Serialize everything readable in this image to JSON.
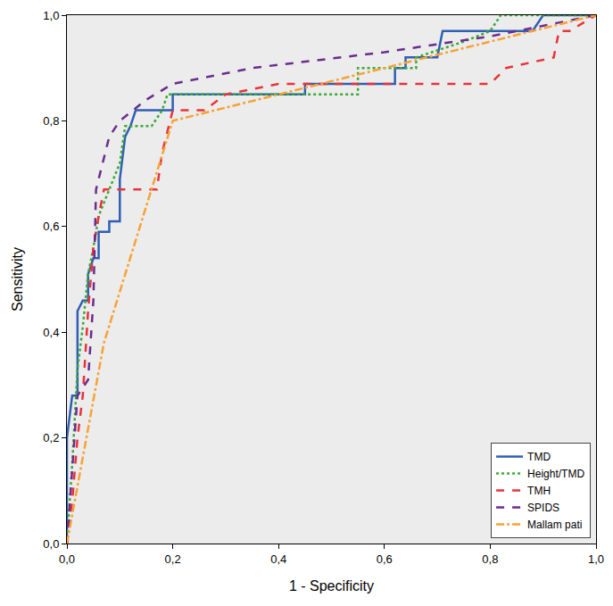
{
  "chart_data": {
    "type": "line",
    "x_label": "1 - Specificity",
    "y_label": "Sensitivity",
    "xlim": [
      0,
      1
    ],
    "ylim": [
      0,
      1
    ],
    "xticks": [
      {
        "value": 0,
        "label": "0,0"
      },
      {
        "value": 0.2,
        "label": "0,2"
      },
      {
        "value": 0.4,
        "label": "0,4"
      },
      {
        "value": 0.6,
        "label": "0,6"
      },
      {
        "value": 0.8,
        "label": "0,8"
      },
      {
        "value": 1,
        "label": "1,0"
      }
    ],
    "yticks": [
      {
        "value": 0,
        "label": "0,0"
      },
      {
        "value": 0.2,
        "label": "0,2"
      },
      {
        "value": 0.4,
        "label": "0,4"
      },
      {
        "value": 0.6,
        "label": "0,6"
      },
      {
        "value": 0.8,
        "label": "0,8"
      },
      {
        "value": 1,
        "label": "1,0"
      }
    ],
    "grid": false,
    "legend": "bottom right",
    "series": [
      {
        "name": "TMD",
        "color": "#2f5fb3",
        "line_style": "solid",
        "x": [
          0,
          0,
          0.01,
          0.02,
          0.02,
          0.03,
          0.04,
          0.04,
          0.05,
          0.06,
          0.06,
          0.08,
          0.08,
          0.1,
          0.1,
          0.11,
          0.12,
          0.13,
          0.2,
          0.2,
          0.45,
          0.45,
          0.62,
          0.62,
          0.64,
          0.64,
          0.7,
          0.71,
          0.88,
          0.9,
          1
        ],
        "values": [
          0,
          0.2,
          0.28,
          0.28,
          0.44,
          0.46,
          0.46,
          0.51,
          0.54,
          0.54,
          0.59,
          0.59,
          0.61,
          0.61,
          0.69,
          0.77,
          0.79,
          0.82,
          0.82,
          0.85,
          0.85,
          0.87,
          0.87,
          0.9,
          0.9,
          0.92,
          0.92,
          0.97,
          0.97,
          1,
          1
        ]
      },
      {
        "name": "Height/TMD",
        "color": "#3aaa35",
        "line_style": "dot",
        "x": [
          0,
          0.01,
          0.02,
          0.03,
          0.04,
          0.05,
          0.06,
          0.08,
          0.1,
          0.11,
          0.16,
          0.18,
          0.19,
          0.55,
          0.55,
          0.66,
          0.66,
          0.75,
          0.8,
          0.82,
          1
        ],
        "values": [
          0,
          0.15,
          0.33,
          0.41,
          0.51,
          0.56,
          0.62,
          0.67,
          0.72,
          0.79,
          0.79,
          0.82,
          0.85,
          0.85,
          0.9,
          0.9,
          0.92,
          0.95,
          0.97,
          1,
          1
        ]
      },
      {
        "name": "TMH",
        "color": "#e8343a",
        "line_style": "dash",
        "x": [
          0,
          0.01,
          0.02,
          0.03,
          0.04,
          0.05,
          0.06,
          0.07,
          0.17,
          0.18,
          0.2,
          0.26,
          0.3,
          0.4,
          0.8,
          0.83,
          0.92,
          0.93,
          0.95,
          1
        ],
        "values": [
          0,
          0.08,
          0.2,
          0.28,
          0.44,
          0.56,
          0.62,
          0.67,
          0.67,
          0.74,
          0.82,
          0.82,
          0.85,
          0.87,
          0.87,
          0.9,
          0.92,
          0.97,
          0.97,
          1
        ]
      },
      {
        "name": "SPIDS",
        "color": "#6b2d8f",
        "line_style": "dash",
        "x": [
          0,
          0.02,
          0.04,
          0.05,
          0.055,
          0.08,
          0.1,
          0.15,
          0.2,
          0.35,
          0.6,
          0.8,
          1
        ],
        "values": [
          0,
          0.28,
          0.31,
          0.46,
          0.67,
          0.77,
          0.8,
          0.84,
          0.87,
          0.9,
          0.93,
          0.96,
          1
        ]
      },
      {
        "name": "Mallam pati",
        "color": "#f7a234",
        "line_style": "dashdot",
        "x": [
          0,
          0.07,
          0.2,
          1
        ],
        "values": [
          0,
          0.38,
          0.8,
          1
        ]
      }
    ]
  }
}
